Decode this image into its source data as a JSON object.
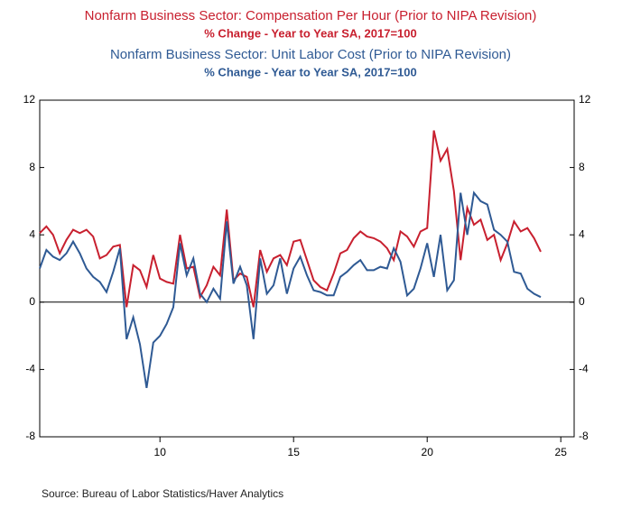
{
  "chart_data": {
    "type": "line",
    "series": [
      {
        "name": "Nonfarm Business Sector: Compensation Per Hour (Prior to NIPA Revision)",
        "subtitle": "% Change - Year to Year   SA, 2017=100",
        "color": "#c8202f",
        "values": [
          4.1,
          4.5,
          4.0,
          2.9,
          3.7,
          4.3,
          4.1,
          4.3,
          3.9,
          2.6,
          2.8,
          3.3,
          3.4,
          -0.3,
          2.2,
          1.9,
          0.9,
          2.8,
          1.4,
          1.2,
          1.1,
          4.0,
          2.0,
          2.1,
          0.3,
          1.0,
          2.1,
          1.6,
          5.5,
          1.3,
          1.7,
          1.5,
          -0.3,
          3.1,
          1.8,
          2.6,
          2.8,
          2.2,
          3.6,
          3.7,
          2.5,
          1.3,
          0.9,
          0.7,
          1.7,
          2.9,
          3.1,
          3.8,
          4.2,
          3.9,
          3.8,
          3.6,
          3.2,
          2.5,
          4.2,
          3.9,
          3.3,
          4.2,
          4.4,
          10.2,
          8.4,
          9.1,
          6.6,
          2.5,
          5.6,
          4.6,
          4.9,
          3.7,
          4.0,
          2.5,
          3.5,
          4.8,
          4.2,
          4.4,
          3.8,
          3.0
        ]
      },
      {
        "name": "Nonfarm Business Sector: Unit Labor Cost (Prior to NIPA Revision)",
        "subtitle": "% Change - Year to Year   SA, 2017=100",
        "color": "#2f5a94",
        "values": [
          2.0,
          3.1,
          2.7,
          2.5,
          2.9,
          3.6,
          2.9,
          2.0,
          1.5,
          1.2,
          0.6,
          1.8,
          3.2,
          -2.2,
          -0.9,
          -2.5,
          -5.1,
          -2.4,
          -2.0,
          -1.3,
          -0.3,
          3.5,
          1.6,
          2.6,
          0.5,
          0.0,
          0.8,
          0.2,
          4.8,
          1.1,
          2.1,
          1.0,
          -2.2,
          2.6,
          0.5,
          1.0,
          2.6,
          0.5,
          2.0,
          2.7,
          1.6,
          0.7,
          0.6,
          0.4,
          0.4,
          1.5,
          1.8,
          2.2,
          2.5,
          1.9,
          1.9,
          2.1,
          2.0,
          3.2,
          2.4,
          0.4,
          0.8,
          2.0,
          3.5,
          1.5,
          4.0,
          0.7,
          1.3,
          6.5,
          4.0,
          6.5,
          6.0,
          5.8,
          4.3,
          4.0,
          3.6,
          1.8,
          1.7,
          0.8,
          0.5,
          0.3
        ]
      }
    ],
    "x": [
      5.5,
      5.75,
      6,
      6.25,
      6.5,
      6.75,
      7,
      7.25,
      7.5,
      7.75,
      8,
      8.25,
      8.5,
      8.75,
      9,
      9.25,
      9.5,
      9.75,
      10,
      10.25,
      10.5,
      10.75,
      11,
      11.25,
      11.5,
      11.75,
      12,
      12.25,
      12.5,
      12.75,
      13,
      13.25,
      13.5,
      13.75,
      14,
      14.25,
      14.5,
      14.75,
      15,
      15.25,
      15.5,
      15.75,
      16,
      16.25,
      16.5,
      16.75,
      17,
      17.25,
      17.5,
      17.75,
      18,
      18.25,
      18.5,
      18.75,
      19,
      19.25,
      19.5,
      19.75,
      20,
      20.25,
      20.5,
      20.75,
      21,
      21.25,
      21.5,
      21.75,
      22,
      22.25,
      22.5,
      22.75,
      23,
      23.25,
      23.5,
      23.75,
      24,
      24.25
    ],
    "xlim": [
      5.5,
      25.5
    ],
    "xticks": [
      10,
      15,
      20,
      25
    ],
    "ylim": [
      -8,
      12
    ],
    "yticks": [
      -8,
      -4,
      0,
      4,
      8,
      12
    ],
    "source": "Source:  Bureau of Labor Statistics/Haver Analytics"
  }
}
